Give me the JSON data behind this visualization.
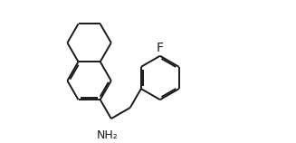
{
  "background": "#ffffff",
  "line_color": "#1a1a1a",
  "line_width": 1.4,
  "font_size_F": 10,
  "font_size_NH2": 9,
  "F_label": "F",
  "NH2_label": "NH₂",
  "fig_width": 3.27,
  "fig_height": 1.58,
  "dpi": 100,
  "xlim": [
    0.2,
    9.8
  ],
  "ylim": [
    0.5,
    5.5
  ]
}
